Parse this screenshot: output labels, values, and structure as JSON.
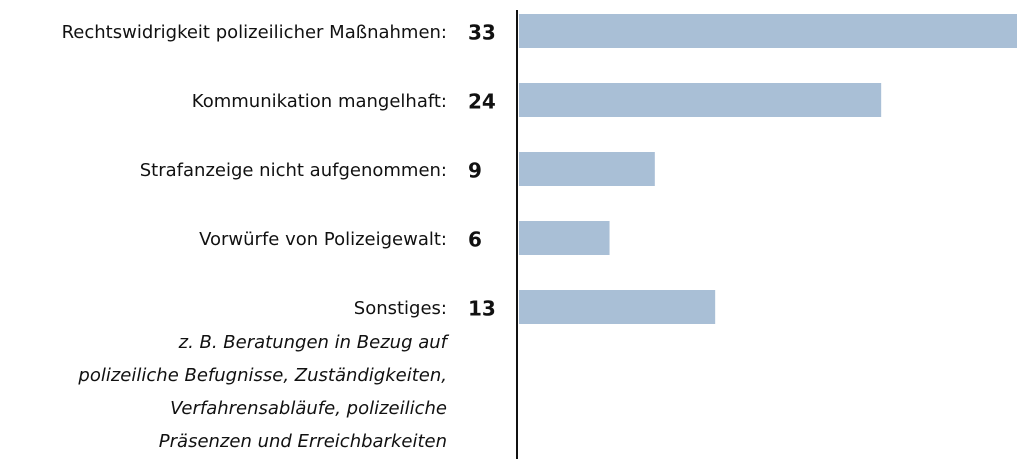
{
  "chart_data": {
    "type": "bar",
    "orientation": "horizontal",
    "categories": [
      "Rechtswidrigkeit polizeilicher Maßnahmen:",
      "Kommunikation mangelhaft:",
      "Strafanzeige nicht aufgenommen:",
      "Vorwürfe von Polizeigewalt:",
      "Sonstiges:"
    ],
    "values": [
      33,
      24,
      9,
      6,
      13
    ],
    "color": "#a9bfd6",
    "annotation": [
      "z. B. Beratungen in Bezug auf",
      "polizeiliche Befugnisse, Zuständigkeiten,",
      "Verfahrensabläufe, polizeiliche",
      "Präsenzen und Erreichbarkeiten"
    ]
  }
}
